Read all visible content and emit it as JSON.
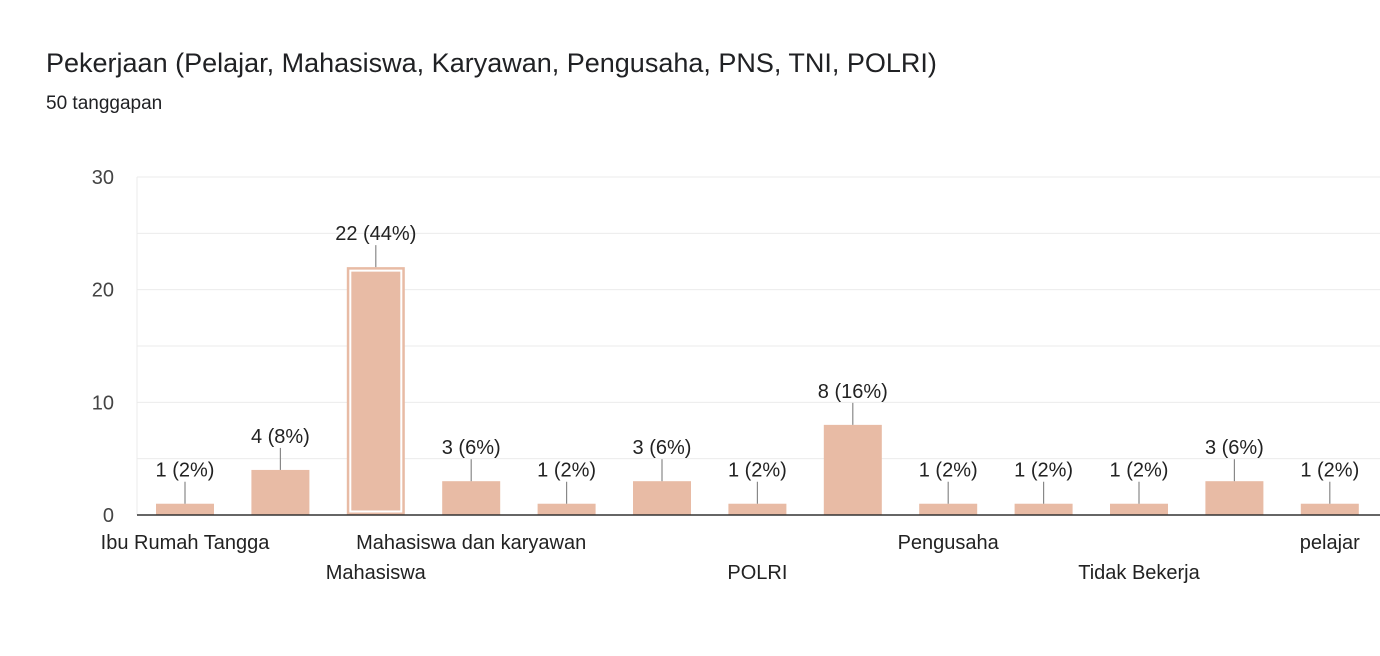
{
  "title": "Pekerjaan (Pelajar, Mahasiswa, Karyawan, Pengusaha, PNS, TNI, POLRI)",
  "subtitle": "50 tanggapan",
  "colors": {
    "bar": "#e8bba5",
    "grid": "#ebebeb",
    "axis": "#333333",
    "leader": "#888888"
  },
  "chart_data": {
    "type": "bar",
    "categories": [
      "Ibu Rumah Tangga",
      "",
      "Mahasiswa",
      "Mahasiswa dan karyawan",
      "",
      "",
      "POLRI",
      "",
      "Pengusaha",
      "",
      "Tidak Bekerja",
      "",
      "pelajar"
    ],
    "values": [
      1,
      4,
      22,
      3,
      1,
      3,
      1,
      8,
      1,
      1,
      1,
      3,
      1
    ],
    "data_labels": [
      "1 (2%)",
      "4 (8%)",
      "22 (44%)",
      "3 (6%)",
      "1 (2%)",
      "3 (6%)",
      "1 (2%)",
      "8 (16%)",
      "1 (2%)",
      "1 (2%)",
      "1 (2%)",
      "3 (6%)",
      "1 (2%)"
    ],
    "highlighted_index": 2,
    "y_ticks": [
      0,
      10,
      20,
      30
    ],
    "ylim": [
      0,
      30
    ],
    "grid": true,
    "xlabel": "",
    "ylabel": ""
  }
}
